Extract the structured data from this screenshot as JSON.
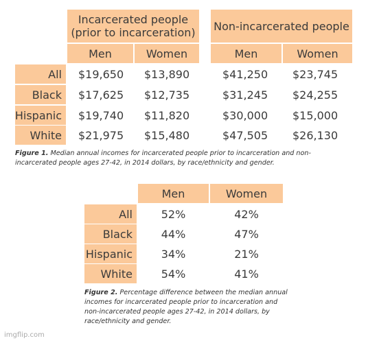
{
  "chart_data": [
    {
      "type": "table",
      "column_groups": [
        "Incarcerated people\n(prior to incarceration)",
        "Non-incarcerated people"
      ],
      "columns": [
        "Men",
        "Women",
        "Men",
        "Women"
      ],
      "rows": [
        {
          "label": "All",
          "values": [
            "$19,650",
            "$13,890",
            "$41,250",
            "$23,745"
          ]
        },
        {
          "label": "Black",
          "values": [
            "$17,625",
            "$12,735",
            "$31,245",
            "$24,255"
          ]
        },
        {
          "label": "Hispanic",
          "values": [
            "$19,740",
            "$11,820",
            "$30,000",
            "$15,000"
          ]
        },
        {
          "label": "White",
          "values": [
            "$21,975",
            "$15,480",
            "$47,505",
            "$26,130"
          ]
        }
      ],
      "caption_label": "Figure 1.",
      "caption_text": "Median annual incomes for incarcerated people prior to incarceration and non-incarcerated people ages 27-42, in 2014 dollars, by race/ethnicity and gender."
    },
    {
      "type": "table",
      "columns": [
        "Men",
        "Women"
      ],
      "rows": [
        {
          "label": "All",
          "values": [
            "52%",
            "42%"
          ]
        },
        {
          "label": "Black",
          "values": [
            "44%",
            "47%"
          ]
        },
        {
          "label": "Hispanic",
          "values": [
            "34%",
            "21%"
          ]
        },
        {
          "label": "White",
          "values": [
            "54%",
            "41%"
          ]
        }
      ],
      "caption_label": "Figure 2.",
      "caption_text": "Percentage difference between the median annual incomes for incarcerated people prior to incarceration and non-incarcerated people ages 27-42, in 2014 dollars, by race/ethnicity and gender."
    }
  ],
  "colors": {
    "header_bg": "#fbc99a",
    "text": "#3a3a3a"
  },
  "watermark": "imgflip.com"
}
